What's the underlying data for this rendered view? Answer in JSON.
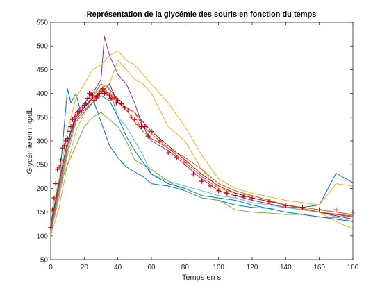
{
  "chart_data": {
    "type": "line",
    "title": "Représentation de la glycémie des souris en fonction du temps",
    "xlabel": "Temps en s",
    "ylabel": "Glycémie en mg/dL",
    "xlim": [
      0,
      180
    ],
    "ylim": [
      50,
      550
    ],
    "xticks": [
      0,
      20,
      40,
      60,
      80,
      100,
      120,
      140,
      160,
      180
    ],
    "yticks": [
      50,
      100,
      150,
      200,
      250,
      300,
      350,
      400,
      450,
      500,
      550
    ],
    "grid": false,
    "legend": "none",
    "series": [
      {
        "color": "#0072BD",
        "x": [
          0,
          5,
          10,
          12,
          15,
          18,
          20,
          25,
          30,
          35,
          40,
          45,
          50,
          55,
          60,
          70,
          80,
          90,
          100,
          110,
          120,
          130,
          140,
          150,
          160,
          170,
          180
        ],
        "y": [
          120,
          210,
          410,
          380,
          400,
          360,
          370,
          390,
          340,
          290,
          265,
          245,
          235,
          225,
          210,
          205,
          195,
          180,
          175,
          165,
          160,
          158,
          160,
          160,
          165,
          232,
          212
        ]
      },
      {
        "color": "#D95319",
        "x": [
          0,
          5,
          10,
          15,
          20,
          25,
          30,
          35,
          40,
          45,
          50,
          55,
          60,
          70,
          80,
          90,
          100,
          110,
          120,
          140,
          160,
          180
        ],
        "y": [
          110,
          190,
          280,
          350,
          370,
          395,
          420,
          410,
          385,
          365,
          340,
          320,
          305,
          285,
          255,
          225,
          200,
          190,
          180,
          165,
          155,
          145
        ]
      },
      {
        "color": "#EDB120",
        "x": [
          0,
          5,
          10,
          15,
          20,
          25,
          30,
          35,
          40,
          45,
          50,
          55,
          60,
          70,
          80,
          90,
          100,
          110,
          120,
          140,
          160,
          170,
          180
        ],
        "y": [
          100,
          160,
          250,
          320,
          360,
          395,
          410,
          420,
          470,
          450,
          430,
          420,
          400,
          330,
          300,
          240,
          200,
          190,
          185,
          165,
          150,
          130,
          115
        ]
      },
      {
        "color": "#7E2F8E",
        "x": [
          0,
          5,
          10,
          15,
          20,
          25,
          30,
          32,
          35,
          40,
          45,
          50,
          55,
          60,
          70,
          80,
          90,
          100,
          120,
          140,
          160,
          180
        ],
        "y": [
          115,
          200,
          290,
          360,
          380,
          400,
          430,
          520,
          480,
          440,
          420,
          380,
          330,
          300,
          280,
          250,
          220,
          195,
          175,
          160,
          150,
          140
        ]
      },
      {
        "color": "#77AC30",
        "x": [
          0,
          5,
          10,
          15,
          20,
          25,
          30,
          35,
          40,
          45,
          50,
          60,
          70,
          80,
          90,
          100,
          110,
          120,
          130,
          140,
          150,
          160,
          170,
          180
        ],
        "y": [
          130,
          200,
          250,
          290,
          330,
          350,
          360,
          345,
          330,
          300,
          260,
          240,
          215,
          195,
          180,
          175,
          155,
          150,
          148,
          145,
          145,
          140,
          138,
          145
        ]
      },
      {
        "color": "#4DBEEE",
        "x": [
          0,
          5,
          10,
          15,
          20,
          25,
          30,
          35,
          40,
          45,
          50,
          55,
          60,
          70,
          80,
          90,
          100,
          110,
          120,
          140,
          160,
          180
        ],
        "y": [
          105,
          180,
          270,
          340,
          360,
          390,
          400,
          410,
          350,
          330,
          300,
          270,
          230,
          215,
          205,
          195,
          185,
          180,
          170,
          160,
          150,
          130
        ]
      },
      {
        "color": "#A2142F",
        "x": [
          0,
          5,
          10,
          15,
          20,
          25,
          30,
          35,
          40,
          45,
          50,
          55,
          60,
          70,
          80,
          90,
          100,
          110,
          120,
          140,
          160,
          180
        ],
        "y": [
          120,
          210,
          300,
          350,
          370,
          390,
          400,
          420,
          380,
          370,
          360,
          340,
          320,
          290,
          260,
          230,
          205,
          190,
          180,
          165,
          150,
          135
        ]
      },
      {
        "color": "#0072BD",
        "x": [
          0,
          5,
          10,
          15,
          20,
          25,
          30,
          35,
          40,
          45,
          50,
          55,
          60,
          70,
          80,
          90,
          100,
          110,
          120,
          140,
          160,
          180
        ],
        "y": [
          125,
          215,
          300,
          345,
          365,
          380,
          395,
          385,
          350,
          310,
          280,
          255,
          230,
          210,
          200,
          185,
          180,
          175,
          165,
          150,
          140,
          130
        ]
      },
      {
        "color": "#D95319",
        "x": [
          0,
          5,
          10,
          15,
          20,
          25,
          30,
          35,
          40,
          45,
          50,
          55,
          60,
          70,
          80,
          90,
          100,
          110,
          120,
          140,
          160,
          180
        ],
        "y": [
          118,
          200,
          290,
          340,
          360,
          380,
          410,
          400,
          390,
          370,
          360,
          330,
          315,
          285,
          265,
          240,
          210,
          195,
          185,
          165,
          150,
          142
        ]
      },
      {
        "color": "#EDB120",
        "x": [
          0,
          5,
          10,
          15,
          20,
          25,
          30,
          35,
          40,
          45,
          50,
          55,
          60,
          70,
          80,
          90,
          100,
          110,
          120,
          140,
          160,
          170,
          180
        ],
        "y": [
          140,
          220,
          320,
          390,
          420,
          450,
          460,
          480,
          490,
          470,
          460,
          440,
          420,
          380,
          330,
          270,
          220,
          200,
          190,
          175,
          165,
          210,
          205
        ]
      }
    ],
    "mean": {
      "color": "#D00000",
      "x": [
        0,
        1,
        2,
        3,
        4,
        5,
        6,
        7,
        8,
        9,
        10,
        11,
        12,
        13,
        14,
        15,
        16,
        17,
        18,
        19,
        20,
        21,
        22,
        23,
        24,
        25,
        26,
        27,
        28,
        29,
        30,
        31,
        32,
        33,
        34,
        35,
        36,
        37,
        38,
        39,
        40,
        42,
        44,
        46,
        48,
        50,
        52,
        54,
        56,
        58,
        60,
        65,
        70,
        75,
        80,
        85,
        90,
        95,
        100,
        105,
        110,
        115,
        120,
        130,
        140,
        150,
        160,
        170,
        180
      ],
      "y": [
        118,
        155,
        180,
        210,
        240,
        245,
        260,
        285,
        290,
        300,
        305,
        320,
        330,
        345,
        350,
        355,
        360,
        362,
        365,
        370,
        375,
        378,
        390,
        400,
        398,
        395,
        385,
        392,
        395,
        400,
        405,
        410,
        400,
        402,
        398,
        395,
        390,
        388,
        392,
        380,
        385,
        378,
        370,
        365,
        350,
        345,
        335,
        330,
        330,
        310,
        320,
        300,
        275,
        265,
        255,
        230,
        215,
        205,
        195,
        190,
        185,
        182,
        180,
        172,
        163,
        160,
        155,
        155,
        150
      ]
    }
  }
}
